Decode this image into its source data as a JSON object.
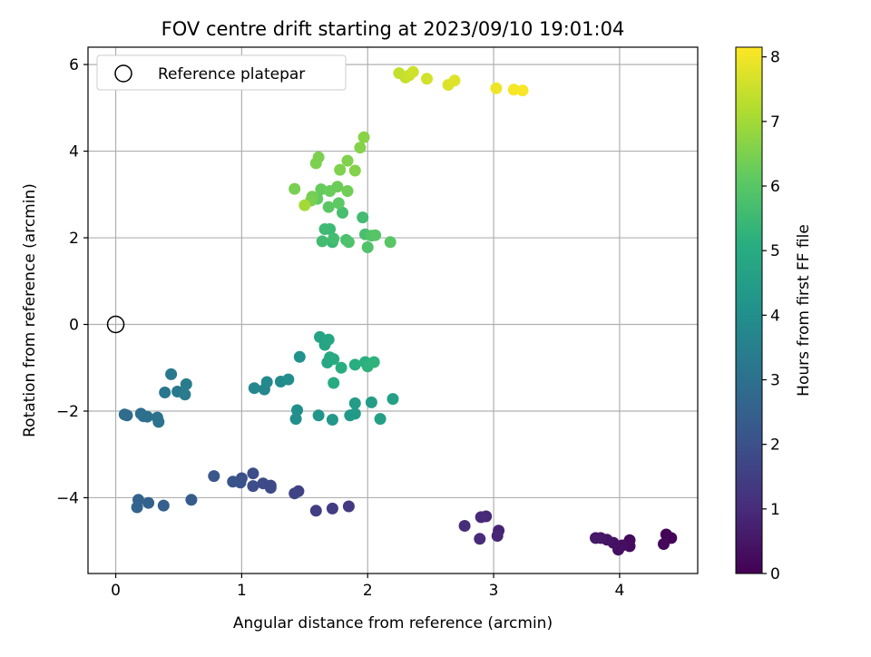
{
  "chart_data": {
    "type": "scatter",
    "title": "FOV centre drift starting at 2023/09/10 19:01:04",
    "xlabel": "Angular distance from reference (arcmin)",
    "ylabel": "Rotation from reference (arcmin)",
    "xlim": [
      -0.22,
      4.62
    ],
    "ylim": [
      -5.75,
      6.4
    ],
    "xticks": [
      0,
      1,
      2,
      3,
      4
    ],
    "yticks": [
      -4,
      -2,
      0,
      2,
      4,
      6
    ],
    "grid": true,
    "legend": {
      "placement": "top-left",
      "entries": [
        "Reference platepar"
      ]
    },
    "reference_point": {
      "x": 0,
      "y": 0,
      "label": "Reference platepar"
    },
    "colorbar": {
      "label": "Hours from first FF file",
      "colormap": "viridis",
      "range": [
        0,
        8.15
      ],
      "ticks": [
        0,
        1,
        2,
        3,
        4,
        5,
        6,
        7,
        8
      ]
    },
    "points": [
      {
        "x": 4.37,
        "y": -4.85,
        "c": 0.05
      },
      {
        "x": 4.41,
        "y": -4.93,
        "c": 0.1
      },
      {
        "x": 4.35,
        "y": -5.07,
        "c": 0.15
      },
      {
        "x": 4.08,
        "y": -4.98,
        "c": 0.2
      },
      {
        "x": 4.08,
        "y": -5.12,
        "c": 0.25
      },
      {
        "x": 4.02,
        "y": -5.1,
        "c": 0.3
      },
      {
        "x": 3.99,
        "y": -5.2,
        "c": 0.35
      },
      {
        "x": 3.95,
        "y": -5.04,
        "c": 0.4
      },
      {
        "x": 3.9,
        "y": -4.97,
        "c": 0.45
      },
      {
        "x": 3.85,
        "y": -4.93,
        "c": 0.5
      },
      {
        "x": 3.81,
        "y": -4.93,
        "c": 0.55
      },
      {
        "x": 3.04,
        "y": -4.76,
        "c": 0.8
      },
      {
        "x": 3.03,
        "y": -4.88,
        "c": 0.85
      },
      {
        "x": 2.94,
        "y": -4.43,
        "c": 0.9
      },
      {
        "x": 2.9,
        "y": -4.45,
        "c": 0.95
      },
      {
        "x": 2.89,
        "y": -4.95,
        "c": 1.0
      },
      {
        "x": 2.77,
        "y": -4.65,
        "c": 1.05
      },
      {
        "x": 1.85,
        "y": -4.2,
        "c": 1.4
      },
      {
        "x": 1.72,
        "y": -4.25,
        "c": 1.45
      },
      {
        "x": 1.59,
        "y": -4.3,
        "c": 1.5
      },
      {
        "x": 1.45,
        "y": -3.85,
        "c": 1.6
      },
      {
        "x": 1.42,
        "y": -3.9,
        "c": 1.65
      },
      {
        "x": 1.23,
        "y": -3.72,
        "c": 1.75
      },
      {
        "x": 1.23,
        "y": -3.77,
        "c": 1.8
      },
      {
        "x": 1.17,
        "y": -3.67,
        "c": 1.85
      },
      {
        "x": 1.09,
        "y": -3.44,
        "c": 1.9
      },
      {
        "x": 1.09,
        "y": -3.73,
        "c": 1.95
      },
      {
        "x": 1.0,
        "y": -3.55,
        "c": 2.0
      },
      {
        "x": 0.99,
        "y": -3.65,
        "c": 2.05
      },
      {
        "x": 0.93,
        "y": -3.63,
        "c": 2.1
      },
      {
        "x": 0.78,
        "y": -3.5,
        "c": 2.2
      },
      {
        "x": 0.6,
        "y": -4.05,
        "c": 2.35
      },
      {
        "x": 0.38,
        "y": -4.18,
        "c": 2.45
      },
      {
        "x": 0.26,
        "y": -4.12,
        "c": 2.5
      },
      {
        "x": 0.18,
        "y": -4.05,
        "c": 2.55
      },
      {
        "x": 0.17,
        "y": -4.22,
        "c": 2.6
      },
      {
        "x": 0.09,
        "y": -2.1,
        "c": 2.8
      },
      {
        "x": 0.07,
        "y": -2.08,
        "c": 2.85
      },
      {
        "x": 0.2,
        "y": -2.06,
        "c": 2.9
      },
      {
        "x": 0.22,
        "y": -2.12,
        "c": 2.95
      },
      {
        "x": 0.25,
        "y": -2.13,
        "c": 3.0
      },
      {
        "x": 0.33,
        "y": -2.15,
        "c": 3.05
      },
      {
        "x": 0.34,
        "y": -2.25,
        "c": 3.1
      },
      {
        "x": 0.39,
        "y": -1.57,
        "c": 3.2
      },
      {
        "x": 0.44,
        "y": -1.15,
        "c": 3.25
      },
      {
        "x": 0.49,
        "y": -1.55,
        "c": 3.3
      },
      {
        "x": 0.55,
        "y": -1.62,
        "c": 3.35
      },
      {
        "x": 0.56,
        "y": -1.38,
        "c": 3.4
      },
      {
        "x": 1.1,
        "y": -1.47,
        "c": 3.7
      },
      {
        "x": 1.18,
        "y": -1.5,
        "c": 3.75
      },
      {
        "x": 1.2,
        "y": -1.33,
        "c": 3.8
      },
      {
        "x": 1.31,
        "y": -1.32,
        "c": 3.85
      },
      {
        "x": 1.37,
        "y": -1.27,
        "c": 3.9
      },
      {
        "x": 1.43,
        "y": -2.18,
        "c": 4.0
      },
      {
        "x": 1.44,
        "y": -1.98,
        "c": 4.05
      },
      {
        "x": 1.46,
        "y": -0.75,
        "c": 4.1
      },
      {
        "x": 1.61,
        "y": -2.1,
        "c": 4.2
      },
      {
        "x": 1.72,
        "y": -2.2,
        "c": 4.3
      },
      {
        "x": 1.86,
        "y": -2.1,
        "c": 4.35
      },
      {
        "x": 1.9,
        "y": -2.06,
        "c": 4.4
      },
      {
        "x": 1.9,
        "y": -1.82,
        "c": 4.45
      },
      {
        "x": 2.03,
        "y": -1.8,
        "c": 4.5
      },
      {
        "x": 2.1,
        "y": -2.18,
        "c": 4.55
      },
      {
        "x": 2.2,
        "y": -1.72,
        "c": 4.6
      },
      {
        "x": 1.62,
        "y": -0.29,
        "c": 4.7
      },
      {
        "x": 1.66,
        "y": -0.47,
        "c": 4.75
      },
      {
        "x": 1.69,
        "y": -0.35,
        "c": 4.8
      },
      {
        "x": 1.68,
        "y": -0.88,
        "c": 4.85
      },
      {
        "x": 1.7,
        "y": -0.76,
        "c": 4.9
      },
      {
        "x": 1.73,
        "y": -0.8,
        "c": 4.95
      },
      {
        "x": 1.73,
        "y": -1.35,
        "c": 5.0
      },
      {
        "x": 1.79,
        "y": -1.0,
        "c": 5.05
      },
      {
        "x": 1.9,
        "y": -0.93,
        "c": 5.1
      },
      {
        "x": 1.98,
        "y": -0.87,
        "c": 5.15
      },
      {
        "x": 2.0,
        "y": -0.97,
        "c": 5.2
      },
      {
        "x": 2.05,
        "y": -0.87,
        "c": 5.25
      },
      {
        "x": 1.72,
        "y": 1.9,
        "c": 5.45
      },
      {
        "x": 1.7,
        "y": 2.2,
        "c": 5.5
      },
      {
        "x": 1.66,
        "y": 2.2,
        "c": 5.55
      },
      {
        "x": 1.64,
        "y": 1.92,
        "c": 5.6
      },
      {
        "x": 1.73,
        "y": 1.98,
        "c": 5.65
      },
      {
        "x": 1.8,
        "y": 2.58,
        "c": 5.7
      },
      {
        "x": 1.83,
        "y": 1.95,
        "c": 5.75
      },
      {
        "x": 1.85,
        "y": 1.9,
        "c": 5.8
      },
      {
        "x": 1.96,
        "y": 2.47,
        "c": 5.6
      },
      {
        "x": 1.98,
        "y": 2.08,
        "c": 5.75
      },
      {
        "x": 2.0,
        "y": 1.78,
        "c": 5.85
      },
      {
        "x": 2.03,
        "y": 2.05,
        "c": 5.9
      },
      {
        "x": 2.06,
        "y": 2.06,
        "c": 5.95
      },
      {
        "x": 2.18,
        "y": 1.9,
        "c": 6.0
      },
      {
        "x": 1.69,
        "y": 2.71,
        "c": 6.05
      },
      {
        "x": 1.77,
        "y": 2.8,
        "c": 6.1
      },
      {
        "x": 1.6,
        "y": 2.9,
        "c": 6.15
      },
      {
        "x": 1.63,
        "y": 3.12,
        "c": 6.2
      },
      {
        "x": 1.7,
        "y": 3.08,
        "c": 6.25
      },
      {
        "x": 1.76,
        "y": 3.18,
        "c": 6.3
      },
      {
        "x": 1.84,
        "y": 3.08,
        "c": 6.35
      },
      {
        "x": 1.56,
        "y": 2.95,
        "c": 6.4
      },
      {
        "x": 1.42,
        "y": 3.13,
        "c": 6.45
      },
      {
        "x": 1.55,
        "y": 2.86,
        "c": 6.45
      },
      {
        "x": 1.59,
        "y": 3.72,
        "c": 6.5
      },
      {
        "x": 1.61,
        "y": 3.86,
        "c": 6.5
      },
      {
        "x": 1.78,
        "y": 3.57,
        "c": 6.55
      },
      {
        "x": 1.84,
        "y": 3.78,
        "c": 6.55
      },
      {
        "x": 1.9,
        "y": 3.55,
        "c": 6.6
      },
      {
        "x": 1.94,
        "y": 4.08,
        "c": 6.6
      },
      {
        "x": 1.97,
        "y": 4.32,
        "c": 6.65
      },
      {
        "x": 1.5,
        "y": 2.75,
        "c": 7.0
      },
      {
        "x": 2.25,
        "y": 5.8,
        "c": 7.4
      },
      {
        "x": 2.3,
        "y": 5.7,
        "c": 7.45
      },
      {
        "x": 2.33,
        "y": 5.75,
        "c": 7.5
      },
      {
        "x": 2.36,
        "y": 5.83,
        "c": 7.55
      },
      {
        "x": 2.47,
        "y": 5.67,
        "c": 7.6
      },
      {
        "x": 2.64,
        "y": 5.53,
        "c": 7.7
      },
      {
        "x": 2.69,
        "y": 5.63,
        "c": 7.75
      },
      {
        "x": 3.02,
        "y": 5.45,
        "c": 7.95
      },
      {
        "x": 3.16,
        "y": 5.42,
        "c": 8.05
      },
      {
        "x": 3.23,
        "y": 5.4,
        "c": 8.1
      }
    ]
  }
}
